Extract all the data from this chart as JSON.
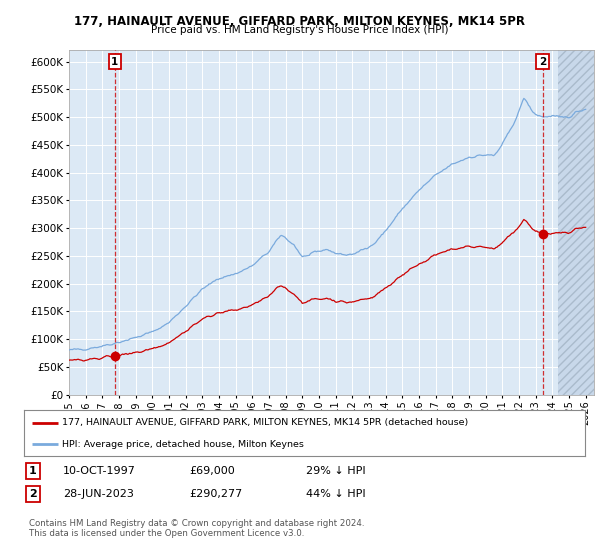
{
  "title1": "177, HAINAULT AVENUE, GIFFARD PARK, MILTON KEYNES, MK14 5PR",
  "title2": "Price paid vs. HM Land Registry's House Price Index (HPI)",
  "legend_red": "177, HAINAULT AVENUE, GIFFARD PARK, MILTON KEYNES, MK14 5PR (detached house)",
  "legend_blue": "HPI: Average price, detached house, Milton Keynes",
  "point1_date": "10-OCT-1997",
  "point1_price": 69000,
  "point1_label": "29% ↓ HPI",
  "point2_date": "28-JUN-2023",
  "point2_price": 290277,
  "point2_label": "44% ↓ HPI",
  "ylabel_ticks": [
    "£0",
    "£50K",
    "£100K",
    "£150K",
    "£200K",
    "£250K",
    "£300K",
    "£350K",
    "£400K",
    "£450K",
    "£500K",
    "£550K",
    "£600K"
  ],
  "ytick_vals": [
    0,
    50000,
    100000,
    150000,
    200000,
    250000,
    300000,
    350000,
    400000,
    450000,
    500000,
    550000,
    600000
  ],
  "ylim": [
    0,
    620000
  ],
  "xlim_start": 1995.0,
  "xlim_end": 2026.5,
  "background_color": "#dce9f5",
  "grid_color": "#ffffff",
  "red_color": "#cc0000",
  "blue_color": "#7aaadd",
  "hatch_color": "#c8d8ea",
  "copyright_text": "Contains HM Land Registry data © Crown copyright and database right 2024.\nThis data is licensed under the Open Government Licence v3.0.",
  "xtick_years": [
    1995,
    1996,
    1997,
    1998,
    1999,
    2000,
    2001,
    2002,
    2003,
    2004,
    2005,
    2006,
    2007,
    2008,
    2009,
    2010,
    2011,
    2012,
    2013,
    2014,
    2015,
    2016,
    2017,
    2018,
    2019,
    2020,
    2021,
    2022,
    2023,
    2024,
    2025,
    2026
  ]
}
